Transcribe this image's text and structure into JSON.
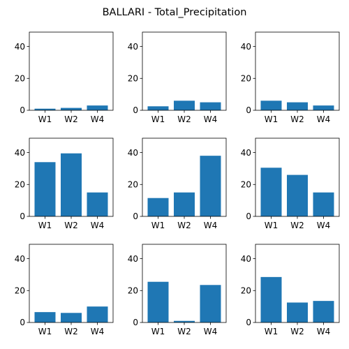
{
  "chart_data": {
    "type": "bar",
    "title": "BALLARI - Total_Precipitation",
    "layout": "3x3 grid of subplots",
    "bar_color": "#1f77b4",
    "ylim": [
      0,
      49
    ],
    "yticks": [
      0,
      20,
      40
    ],
    "categories": [
      "W1",
      "W2",
      "W4"
    ],
    "subplots": [
      {
        "values": [
          1.0,
          1.5,
          3.0
        ]
      },
      {
        "values": [
          2.5,
          6.0,
          5.0
        ]
      },
      {
        "values": [
          6.0,
          5.0,
          3.0
        ]
      },
      {
        "values": [
          34.0,
          39.5,
          15.0
        ]
      },
      {
        "values": [
          11.5,
          15.0,
          38.0
        ]
      },
      {
        "values": [
          30.5,
          26.0,
          15.0
        ]
      },
      {
        "values": [
          6.5,
          6.0,
          10.0
        ]
      },
      {
        "values": [
          25.5,
          1.0,
          23.5
        ]
      },
      {
        "values": [
          28.5,
          12.5,
          13.5
        ]
      }
    ]
  }
}
